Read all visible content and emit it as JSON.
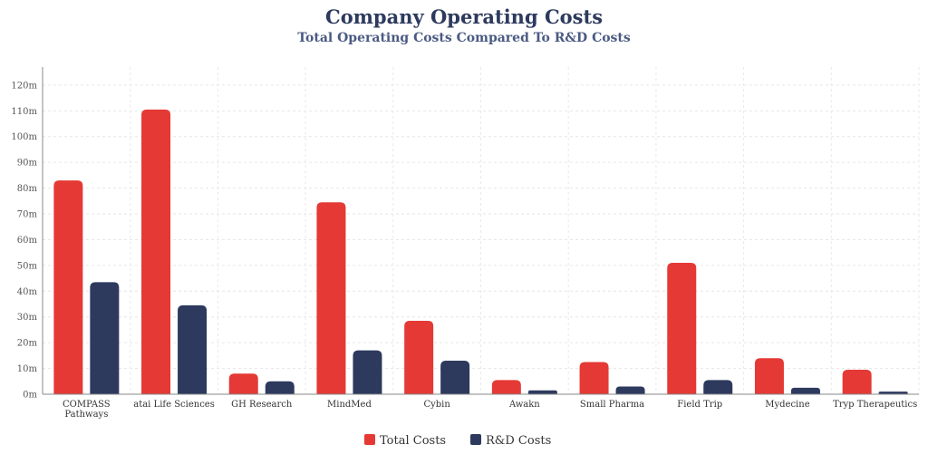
{
  "chart_data": {
    "type": "bar",
    "title": "Company Operating Costs",
    "subtitle": "Total Operating Costs Compared To R&D Costs",
    "xlabel": "",
    "ylabel": "",
    "categories": [
      [
        "COMPASS",
        "Pathways"
      ],
      [
        "atai Life Sciences"
      ],
      [
        "GH Research"
      ],
      [
        "MindMed"
      ],
      [
        "Cybin"
      ],
      [
        "Awakn"
      ],
      [
        "Small Pharma"
      ],
      [
        "Field Trip"
      ],
      [
        "Mydecine"
      ],
      [
        "Tryp Therapeutics"
      ]
    ],
    "series": [
      {
        "name": "Total Costs",
        "color": "#e53935",
        "values": [
          83,
          110.5,
          8,
          74.5,
          28.5,
          5.5,
          12.5,
          51,
          14,
          9.5
        ]
      },
      {
        "name": "R&D Costs",
        "color": "#2d3a5e",
        "values": [
          43.5,
          34.5,
          5,
          17,
          13,
          1.5,
          3,
          5.5,
          2.5,
          1
        ]
      }
    ],
    "ylim": [
      0,
      127
    ],
    "yticks": [
      0,
      10,
      20,
      30,
      40,
      50,
      60,
      70,
      80,
      90,
      100,
      110,
      120
    ],
    "ytick_labels": [
      "0m",
      "10m",
      "20m",
      "30m",
      "40m",
      "50m",
      "60m",
      "70m",
      "80m",
      "90m",
      "100m",
      "110m",
      "120m"
    ],
    "grid": true,
    "legend_position": "bottom-center"
  }
}
